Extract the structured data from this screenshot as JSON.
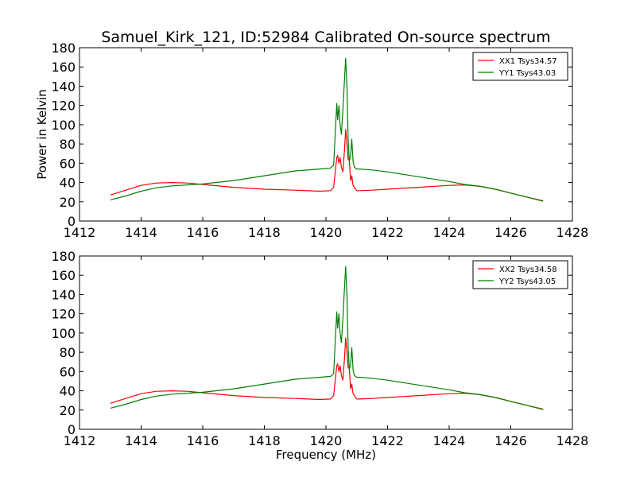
{
  "figure": {
    "title": "Samuel_Kirk_121, ID:52984 Calibrated On-source spectrum",
    "xlabel": "Frequency (MHz)",
    "ylabel": "Power in Kelvin"
  },
  "chart_data": [
    {
      "type": "line",
      "title": "Samuel_Kirk_121, ID:52984 Calibrated On-source spectrum",
      "ylabel": "Power in Kelvin",
      "xlabel": "",
      "xlim": [
        1412,
        1428
      ],
      "ylim": [
        0,
        180
      ],
      "xticks": [
        1412,
        1414,
        1416,
        1418,
        1420,
        1422,
        1424,
        1426,
        1428
      ],
      "yticks": [
        0,
        20,
        40,
        60,
        80,
        100,
        120,
        140,
        160,
        180
      ],
      "grid": false,
      "legend_position": "top-right",
      "series": [
        {
          "name": "XX1 Tsys34.57",
          "color": "#ff0000",
          "x": [
            1413,
            1413.5,
            1414,
            1414.5,
            1415,
            1415.5,
            1416,
            1417,
            1418,
            1419,
            1419.8,
            1420.15,
            1420.25,
            1420.3,
            1420.35,
            1420.38,
            1420.42,
            1420.46,
            1420.5,
            1420.55,
            1420.6,
            1420.64,
            1420.68,
            1420.72,
            1420.76,
            1420.8,
            1420.84,
            1420.88,
            1420.92,
            1420.96,
            1421.0,
            1421.1,
            1421.5,
            1422,
            1423,
            1424,
            1424.5,
            1425,
            1425.5,
            1426,
            1426.5,
            1427.05
          ],
          "y": [
            27,
            32,
            37,
            39.5,
            40,
            39.5,
            38,
            35,
            33,
            32,
            31,
            31.5,
            35,
            50,
            66,
            68,
            60,
            66,
            56,
            51,
            72,
            95,
            80,
            64,
            63,
            42,
            47,
            37,
            35,
            33,
            31.5,
            31.5,
            32,
            33,
            35,
            37,
            37.5,
            36,
            33,
            29,
            25,
            21
          ]
        },
        {
          "name": "YY1 Tsys43.03",
          "color": "#008000",
          "x": [
            1413,
            1413.5,
            1414,
            1414.5,
            1415,
            1415.5,
            1416,
            1417,
            1418,
            1419,
            1419.8,
            1420.15,
            1420.25,
            1420.3,
            1420.35,
            1420.38,
            1420.42,
            1420.46,
            1420.5,
            1420.55,
            1420.6,
            1420.64,
            1420.68,
            1420.72,
            1420.76,
            1420.8,
            1420.84,
            1420.88,
            1420.92,
            1420.96,
            1421.0,
            1421.1,
            1421.5,
            1422,
            1423,
            1424,
            1424.5,
            1425,
            1425.5,
            1426,
            1426.5,
            1427.05
          ],
          "y": [
            22,
            26,
            31,
            34.5,
            36.5,
            37.5,
            38.5,
            42,
            47,
            52,
            54,
            55,
            58,
            90,
            122,
            105,
            120,
            100,
            90,
            115,
            145,
            169,
            140,
            85,
            62,
            68,
            85,
            62,
            56,
            55,
            54,
            54,
            53,
            51,
            46,
            41,
            38,
            36,
            33,
            29,
            25,
            20.5
          ]
        }
      ]
    },
    {
      "type": "line",
      "title": "",
      "ylabel": "Power in Kelvin",
      "xlabel": "Frequency (MHz)",
      "xlim": [
        1412,
        1428
      ],
      "ylim": [
        0,
        180
      ],
      "xticks": [
        1412,
        1414,
        1416,
        1418,
        1420,
        1422,
        1424,
        1426,
        1428
      ],
      "yticks": [
        0,
        20,
        40,
        60,
        80,
        100,
        120,
        140,
        160,
        180
      ],
      "grid": false,
      "legend_position": "top-right",
      "series": [
        {
          "name": "XX2 Tsys34.58",
          "color": "#ff0000",
          "x": [
            1413,
            1413.5,
            1414,
            1414.5,
            1415,
            1415.5,
            1416,
            1417,
            1418,
            1419,
            1419.8,
            1420.15,
            1420.25,
            1420.3,
            1420.35,
            1420.38,
            1420.42,
            1420.46,
            1420.5,
            1420.55,
            1420.6,
            1420.64,
            1420.68,
            1420.72,
            1420.76,
            1420.8,
            1420.84,
            1420.88,
            1420.92,
            1420.96,
            1421.0,
            1421.1,
            1421.5,
            1422,
            1423,
            1424,
            1424.5,
            1425,
            1425.5,
            1426,
            1426.5,
            1427.05
          ],
          "y": [
            27,
            32,
            37,
            39.5,
            40,
            39.5,
            38,
            35,
            33,
            32,
            31,
            31.5,
            35,
            50,
            66,
            68,
            60,
            66,
            56,
            51,
            72,
            95,
            80,
            64,
            63,
            42,
            47,
            37,
            35,
            33,
            31.5,
            31.5,
            32,
            33,
            35,
            37,
            37.5,
            36,
            33,
            29,
            25,
            21
          ]
        },
        {
          "name": "YY2 Tsys43.05",
          "color": "#008000",
          "x": [
            1413,
            1413.5,
            1414,
            1414.5,
            1415,
            1415.5,
            1416,
            1417,
            1418,
            1419,
            1419.8,
            1420.15,
            1420.25,
            1420.3,
            1420.35,
            1420.38,
            1420.42,
            1420.46,
            1420.5,
            1420.55,
            1420.6,
            1420.64,
            1420.68,
            1420.72,
            1420.76,
            1420.8,
            1420.84,
            1420.88,
            1420.92,
            1420.96,
            1421.0,
            1421.1,
            1421.5,
            1422,
            1423,
            1424,
            1424.5,
            1425,
            1425.5,
            1426,
            1426.5,
            1427.05
          ],
          "y": [
            22,
            26,
            31,
            34.5,
            36.5,
            37.5,
            38.5,
            42,
            47,
            52,
            54,
            55,
            58,
            90,
            122,
            105,
            120,
            100,
            90,
            115,
            145,
            169,
            140,
            85,
            62,
            68,
            85,
            62,
            56,
            55,
            54,
            54,
            53,
            51,
            46,
            41,
            38,
            36,
            33,
            29,
            25,
            20.5
          ]
        }
      ]
    }
  ]
}
